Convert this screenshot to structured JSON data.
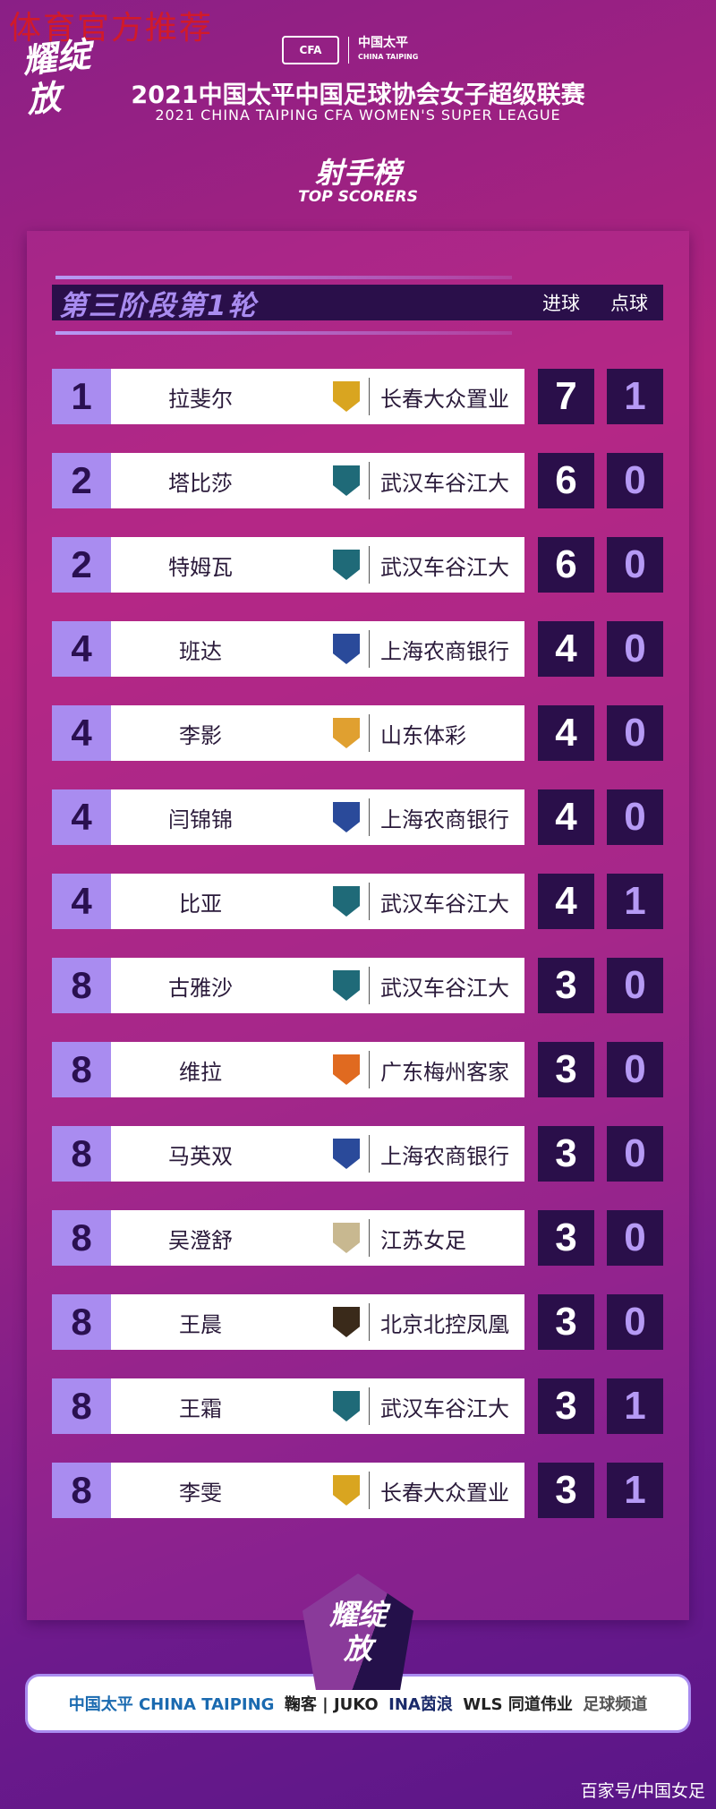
{
  "watermark": "体育官方推荐",
  "brand_mark": "耀绽放",
  "header": {
    "cfa_logo": "CFA",
    "sponsor_cn": "中国太平",
    "sponsor_en": "CHINA TAIPING",
    "title_cn": "2021中国太平中国足球协会女子超级联赛",
    "title_en": "2021 CHINA TAIPING CFA WOMEN'S SUPER LEAGUE",
    "board_cn": "射手榜",
    "board_en": "TOP SCORERS"
  },
  "table": {
    "stage": "第三阶段第1轮",
    "col_goals": "进球",
    "col_penalties": "点球",
    "rows": [
      {
        "rank": "1",
        "name": "拉斐尔",
        "team": "长春大众置业",
        "goals": "7",
        "penalties": "1",
        "crest": "#d9a520"
      },
      {
        "rank": "2",
        "name": "塔比莎",
        "team": "武汉车谷江大",
        "goals": "6",
        "penalties": "0",
        "crest": "#1f6a78"
      },
      {
        "rank": "2",
        "name": "特姆瓦",
        "team": "武汉车谷江大",
        "goals": "6",
        "penalties": "0",
        "crest": "#1f6a78"
      },
      {
        "rank": "4",
        "name": "班达",
        "team": "上海农商银行",
        "goals": "4",
        "penalties": "0",
        "crest": "#2a4a9a"
      },
      {
        "rank": "4",
        "name": "李影",
        "team": "山东体彩",
        "goals": "4",
        "penalties": "0",
        "crest": "#e0a030"
      },
      {
        "rank": "4",
        "name": "闫锦锦",
        "team": "上海农商银行",
        "goals": "4",
        "penalties": "0",
        "crest": "#2a4a9a"
      },
      {
        "rank": "4",
        "name": "比亚",
        "team": "武汉车谷江大",
        "goals": "4",
        "penalties": "1",
        "crest": "#1f6a78"
      },
      {
        "rank": "8",
        "name": "古雅沙",
        "team": "武汉车谷江大",
        "goals": "3",
        "penalties": "0",
        "crest": "#1f6a78"
      },
      {
        "rank": "8",
        "name": "维拉",
        "team": "广东梅州客家",
        "goals": "3",
        "penalties": "0",
        "crest": "#e06a20"
      },
      {
        "rank": "8",
        "name": "马英双",
        "team": "上海农商银行",
        "goals": "3",
        "penalties": "0",
        "crest": "#2a4a9a"
      },
      {
        "rank": "8",
        "name": "吴澄舒",
        "team": "江苏女足",
        "goals": "3",
        "penalties": "0",
        "crest": "#c8b890"
      },
      {
        "rank": "8",
        "name": "王晨",
        "team": "北京北控凤凰",
        "goals": "3",
        "penalties": "0",
        "crest": "#3a2a1a"
      },
      {
        "rank": "8",
        "name": "王霜",
        "team": "武汉车谷江大",
        "goals": "3",
        "penalties": "1",
        "crest": "#1f6a78"
      },
      {
        "rank": "8",
        "name": "李雯",
        "team": "长春大众置业",
        "goals": "3",
        "penalties": "1",
        "crest": "#d9a520"
      }
    ]
  },
  "sponsors": [
    "中国太平 CHINA TAIPING",
    "鞠客 | JUKO",
    "INA茵浪",
    "WLS 同道伟业",
    "足球频道"
  ],
  "credit": "百家号/中国女足"
}
